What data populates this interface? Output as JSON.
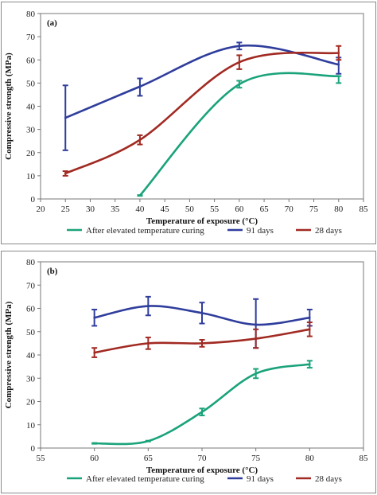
{
  "chart_data": [
    {
      "type": "line",
      "panel_label": "(a)",
      "xlabel": "Temperature of exposure (°C)",
      "ylabel": "Compressive strength (MPa)",
      "xlim": [
        20,
        85
      ],
      "ylim": [
        0,
        80
      ],
      "xticks": [
        20,
        25,
        30,
        35,
        40,
        45,
        50,
        55,
        60,
        65,
        70,
        75,
        80,
        85
      ],
      "yticks": [
        0,
        10,
        20,
        30,
        40,
        50,
        60,
        70,
        80
      ],
      "grid": false,
      "legend_position": "bottom",
      "series": [
        {
          "name": "After elevated temperature curing",
          "color": "#1aa37a",
          "x": [
            40,
            60,
            80
          ],
          "y": [
            1.5,
            49.5,
            53
          ],
          "err_low": [
            0,
            1.5,
            3
          ],
          "err_high": [
            0,
            1.5,
            0
          ]
        },
        {
          "name": "91 days",
          "color": "#2f3d9c",
          "x": [
            25,
            40,
            60,
            80
          ],
          "y": [
            35,
            48.5,
            66,
            58
          ],
          "err_low": [
            14,
            4,
            1.5,
            4
          ],
          "err_high": [
            14,
            3.5,
            1.5,
            3
          ]
        },
        {
          "name": "28 days",
          "color": "#a12a22",
          "x": [
            25,
            40,
            60,
            80
          ],
          "y": [
            11,
            25.5,
            59,
            63
          ],
          "err_low": [
            1,
            2,
            3,
            3
          ],
          "err_high": [
            1,
            2,
            3,
            3
          ]
        }
      ]
    },
    {
      "type": "line",
      "panel_label": "(b)",
      "xlabel": "Temperature of exposure (°C)",
      "ylabel": "Compressive strength (MPa)",
      "xlim": [
        55,
        85
      ],
      "ylim": [
        0,
        80
      ],
      "xticks": [
        55,
        60,
        65,
        70,
        75,
        80,
        85
      ],
      "yticks": [
        0,
        10,
        20,
        30,
        40,
        50,
        60,
        70,
        80
      ],
      "grid": false,
      "legend_position": "bottom",
      "series": [
        {
          "name": "After elevated temperature curing",
          "color": "#1aa37a",
          "x": [
            60,
            65,
            70,
            75,
            80
          ],
          "y": [
            2,
            3,
            15.5,
            32,
            36
          ],
          "err_low": [
            0,
            0,
            1.5,
            2,
            1.5
          ],
          "err_high": [
            0,
            0,
            1.5,
            2,
            1.5
          ]
        },
        {
          "name": "91 days",
          "color": "#2f3d9c",
          "x": [
            60,
            65,
            70,
            75,
            80
          ],
          "y": [
            56,
            61,
            58,
            53,
            56
          ],
          "err_low": [
            3.5,
            4,
            4.5,
            10,
            3.5
          ],
          "err_high": [
            3.5,
            4,
            4.5,
            11,
            3.5
          ]
        },
        {
          "name": "28 days",
          "color": "#a12a22",
          "x": [
            60,
            65,
            70,
            75,
            80
          ],
          "y": [
            41,
            45,
            45,
            47,
            51
          ],
          "err_low": [
            2,
            2.5,
            1.5,
            4,
            3
          ],
          "err_high": [
            2,
            2.5,
            1.5,
            4,
            3
          ]
        }
      ]
    }
  ]
}
